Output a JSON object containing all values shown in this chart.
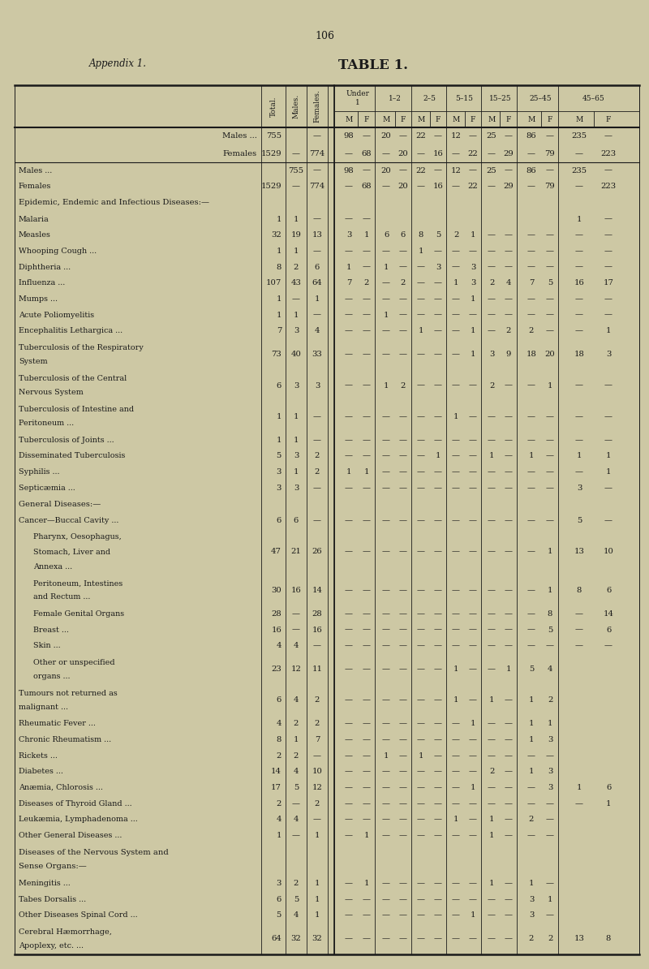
{
  "page_number": "106",
  "appendix_title": "Appendix 1.",
  "table_title": "TABLE 1.",
  "bg": "#cdc8a4",
  "tc": "#1a1a1a",
  "rows": [
    {
      "label": "Males ...",
      "is_totals": true,
      "side": "M",
      "total": "",
      "males": "755",
      "females": "—",
      "d": [
        "98",
        "—",
        "20",
        "—",
        "22",
        "—",
        "12",
        "—",
        "25",
        "—",
        "86",
        "—",
        "235",
        "—"
      ]
    },
    {
      "label": "Females",
      "is_totals": true,
      "side": "F",
      "total": "1529",
      "males": "—",
      "females": "774",
      "d": [
        "—",
        "68",
        "—",
        "20",
        "—",
        "16",
        "—",
        "22",
        "—",
        "29",
        "—",
        "79",
        "—",
        "223"
      ]
    },
    {
      "label": "Epidemic, Endemic and Infectious Diseases:—",
      "is_section": true
    },
    {
      "label": "Malaria",
      "ind": 1,
      "total": "1",
      "males": "1",
      "females": "—",
      "d": [
        "—",
        "—",
        "",
        "",
        "",
        "",
        "",
        "",
        "",
        "",
        "",
        "",
        "1",
        "—"
      ]
    },
    {
      "label": "Measles",
      "ind": 1,
      "total": "32",
      "males": "19",
      "females": "13",
      "d": [
        "3",
        "1",
        "6",
        "6",
        "8",
        "5",
        "2",
        "1",
        "—",
        "—",
        "—",
        "—",
        "—",
        "—"
      ]
    },
    {
      "label": "Whooping Cough ...",
      "ind": 1,
      "total": "1",
      "males": "1",
      "females": "—",
      "d": [
        "—",
        "—",
        "—",
        "—",
        "1",
        "—",
        "—",
        "—",
        "—",
        "—",
        "—",
        "—",
        "—",
        "—"
      ]
    },
    {
      "label": "Diphtheria ...",
      "ind": 1,
      "total": "8",
      "males": "2",
      "females": "6",
      "d": [
        "1",
        "—",
        "1",
        "—",
        "—",
        "3",
        "—",
        "3",
        "—",
        "—",
        "—",
        "—",
        "—",
        "—"
      ]
    },
    {
      "label": "Influenza ...",
      "ind": 1,
      "total": "107",
      "males": "43",
      "females": "64",
      "d": [
        "7",
        "2",
        "—",
        "2",
        "—",
        "—",
        "1",
        "3",
        "2",
        "4",
        "7",
        "5",
        "16",
        "17"
      ]
    },
    {
      "label": "Mumps ...",
      "ind": 1,
      "total": "1",
      "males": "—",
      "females": "1",
      "d": [
        "—",
        "—",
        "—",
        "—",
        "—",
        "—",
        "—",
        "1",
        "—",
        "—",
        "—",
        "—",
        "—",
        "—"
      ]
    },
    {
      "label": "Acute Poliomyelitis",
      "ind": 1,
      "total": "1",
      "males": "1",
      "females": "—",
      "d": [
        "—",
        "—",
        "1",
        "—",
        "—",
        "—",
        "—",
        "—",
        "—",
        "—",
        "—",
        "—",
        "—",
        "—"
      ]
    },
    {
      "label": "Encephalitis Lethargica ...",
      "ind": 1,
      "total": "7",
      "males": "3",
      "females": "4",
      "d": [
        "—",
        "—",
        "—",
        "—",
        "1",
        "—",
        "—",
        "1",
        "—",
        "2",
        "2",
        "—",
        "—",
        "1"
      ]
    },
    {
      "label": "Tuberculosis of the Respiratory",
      "ind": 1,
      "cont": "    System",
      "total": "73",
      "males": "40",
      "females": "33",
      "d": [
        "—",
        "—",
        "—",
        "—",
        "—",
        "—",
        "—",
        "1",
        "3",
        "9",
        "18",
        "20",
        "18",
        "3"
      ]
    },
    {
      "label": "Tuberculosis of the Central",
      "ind": 1,
      "cont": "    Nervous System",
      "total": "6",
      "males": "3",
      "females": "3",
      "d": [
        "—",
        "—",
        "1",
        "2",
        "—",
        "—",
        "—",
        "—",
        "2",
        "—",
        "—",
        "1",
        "—",
        "—"
      ]
    },
    {
      "label": "Tuberculosis of Intestine and",
      "ind": 1,
      "cont": "    Peritoneum ...",
      "total": "1",
      "males": "1",
      "females": "—",
      "d": [
        "—",
        "—",
        "—",
        "—",
        "—",
        "—",
        "1",
        "—",
        "—",
        "—",
        "—",
        "—",
        "—",
        "—"
      ]
    },
    {
      "label": "Tuberculosis of Joints ...",
      "ind": 1,
      "total": "1",
      "males": "1",
      "females": "—",
      "d": [
        "—",
        "—",
        "—",
        "—",
        "—",
        "—",
        "—",
        "—",
        "—",
        "—",
        "—",
        "—",
        "—",
        "—"
      ]
    },
    {
      "label": "Disseminated Tuberculosis",
      "ind": 1,
      "total": "5",
      "males": "3",
      "females": "2",
      "d": [
        "—",
        "—",
        "—",
        "—",
        "—",
        "1",
        "—",
        "—",
        "1",
        "—",
        "1",
        "—",
        "1",
        "1"
      ]
    },
    {
      "label": "Syphilis ...",
      "ind": 1,
      "total": "3",
      "males": "1",
      "females": "2",
      "d": [
        "1",
        "1",
        "—",
        "—",
        "—",
        "—",
        "—",
        "—",
        "—",
        "—",
        "—",
        "—",
        "—",
        "1"
      ]
    },
    {
      "label": "Septicæmia ...",
      "ind": 1,
      "total": "3",
      "males": "3",
      "females": "—",
      "d": [
        "—",
        "—",
        "—",
        "—",
        "—",
        "—",
        "—",
        "—",
        "—",
        "—",
        "—",
        "—",
        "3",
        "—"
      ]
    },
    {
      "label": "General Diseases:—",
      "is_section": true
    },
    {
      "label": "Cancer—Buccal Cavity ...",
      "ind": 1,
      "total": "6",
      "males": "6",
      "females": "—",
      "d": [
        "—",
        "—",
        "—",
        "—",
        "—",
        "—",
        "—",
        "—",
        "—",
        "—",
        "—",
        "—",
        "5",
        "—"
      ]
    },
    {
      "label": "    Pharynx, Oesophagus,",
      "ind": 2,
      "cont2": "    Stomach, Liver and",
      "cont3": "    Annexa ...",
      "total": "47",
      "males": "21",
      "females": "26",
      "d": [
        "—",
        "—",
        "—",
        "—",
        "—",
        "—",
        "—",
        "—",
        "—",
        "—",
        "—",
        "1",
        "13",
        "10"
      ]
    },
    {
      "label": "    Peritoneum, Intestines",
      "ind": 2,
      "cont": "    and Rectum ...",
      "total": "30",
      "males": "16",
      "females": "14",
      "d": [
        "—",
        "—",
        "—",
        "—",
        "—",
        "—",
        "—",
        "—",
        "—",
        "—",
        "—",
        "1",
        "8",
        "6"
      ]
    },
    {
      "label": "    Female Genital Organs",
      "ind": 2,
      "total": "28",
      "males": "—",
      "females": "28",
      "d": [
        "—",
        "—",
        "—",
        "—",
        "—",
        "—",
        "—",
        "—",
        "—",
        "—",
        "—",
        "8",
        "—",
        "14"
      ]
    },
    {
      "label": "    Breast ...",
      "ind": 2,
      "total": "16",
      "males": "—",
      "females": "16",
      "d": [
        "—",
        "—",
        "—",
        "—",
        "—",
        "—",
        "—",
        "—",
        "—",
        "—",
        "—",
        "5",
        "—",
        "6"
      ]
    },
    {
      "label": "    Skin ...",
      "ind": 2,
      "total": "4",
      "males": "4",
      "females": "—",
      "d": [
        "—",
        "—",
        "—",
        "—",
        "—",
        "—",
        "—",
        "—",
        "—",
        "—",
        "—",
        "—",
        "—",
        "—"
      ]
    },
    {
      "label": "    Other or unspecified",
      "ind": 2,
      "cont": "    organs ...",
      "total": "23",
      "males": "12",
      "females": "11",
      "d": [
        "—",
        "—",
        "—",
        "—",
        "—",
        "—",
        "1",
        "—",
        "—",
        "1",
        "5",
        "4",
        "",
        ""
      ]
    },
    {
      "label": "Tumours not returned as",
      "ind": 1,
      "cont": "    malignant ...",
      "total": "6",
      "males": "4",
      "females": "2",
      "d": [
        "—",
        "—",
        "—",
        "—",
        "—",
        "—",
        "1",
        "—",
        "1",
        "—",
        "1",
        "2",
        "",
        ""
      ]
    },
    {
      "label": "Rheumatic Fever ...",
      "ind": 1,
      "total": "4",
      "males": "2",
      "females": "2",
      "d": [
        "—",
        "—",
        "—",
        "—",
        "—",
        "—",
        "—",
        "1",
        "—",
        "—",
        "1",
        "1",
        "",
        ""
      ]
    },
    {
      "label": "Chronic Rheumatism ...",
      "ind": 1,
      "total": "8",
      "males": "1",
      "females": "7",
      "d": [
        "—",
        "—",
        "—",
        "—",
        "—",
        "—",
        "—",
        "—",
        "—",
        "—",
        "1",
        "3",
        "",
        ""
      ]
    },
    {
      "label": "Rickets ...",
      "ind": 1,
      "total": "2",
      "males": "2",
      "females": "—",
      "d": [
        "—",
        "—",
        "1",
        "—",
        "1",
        "—",
        "—",
        "—",
        "—",
        "—",
        "—",
        "—",
        "",
        ""
      ]
    },
    {
      "label": "Diabetes ...",
      "ind": 1,
      "total": "14",
      "males": "4",
      "females": "10",
      "d": [
        "—",
        "—",
        "—",
        "—",
        "—",
        "—",
        "—",
        "—",
        "2",
        "—",
        "1",
        "3",
        "",
        ""
      ]
    },
    {
      "label": "Anæmia, Chlorosis ...",
      "ind": 1,
      "total": "17",
      "males": "5",
      "females": "12",
      "d": [
        "—",
        "—",
        "—",
        "—",
        "—",
        "—",
        "—",
        "1",
        "—",
        "—",
        "—",
        "3",
        "1",
        "6"
      ]
    },
    {
      "label": "Diseases of Thyroid Gland ...",
      "ind": 1,
      "total": "2",
      "males": "—",
      "females": "2",
      "d": [
        "—",
        "—",
        "—",
        "—",
        "—",
        "—",
        "—",
        "—",
        "—",
        "—",
        "—",
        "—",
        "—",
        "1"
      ]
    },
    {
      "label": "Leukæmia, Lymphadenoma ...",
      "ind": 1,
      "total": "4",
      "males": "4",
      "females": "—",
      "d": [
        "—",
        "—",
        "—",
        "—",
        "—",
        "—",
        "1",
        "—",
        "1",
        "—",
        "2",
        "—",
        "",
        ""
      ]
    },
    {
      "label": "Other General Diseases ...",
      "ind": 1,
      "total": "1",
      "males": "—",
      "females": "1",
      "d": [
        "—",
        "1",
        "—",
        "—",
        "—",
        "—",
        "—",
        "—",
        "1",
        "—",
        "—",
        "—",
        "",
        ""
      ]
    },
    {
      "label": "Diseases of the Nervous System and",
      "is_section": true,
      "cont_s": "Sense Organs:—"
    },
    {
      "label": "Meningitis ...",
      "ind": 1,
      "total": "3",
      "males": "2",
      "females": "1",
      "d": [
        "—",
        "1",
        "—",
        "—",
        "—",
        "—",
        "—",
        "—",
        "1",
        "—",
        "1",
        "—",
        "",
        ""
      ]
    },
    {
      "label": "Tabes Dorsalis ...",
      "ind": 1,
      "total": "6",
      "males": "5",
      "females": "1",
      "d": [
        "—",
        "—",
        "—",
        "—",
        "—",
        "—",
        "—",
        "—",
        "—",
        "—",
        "3",
        "1",
        "",
        ""
      ]
    },
    {
      "label": "Other Diseases Spinal Cord ...",
      "ind": 1,
      "total": "5",
      "males": "4",
      "females": "1",
      "d": [
        "—",
        "—",
        "—",
        "—",
        "—",
        "—",
        "—",
        "1",
        "—",
        "—",
        "3",
        "—",
        "",
        ""
      ]
    },
    {
      "label": "Cerebral Hæmorrhage,",
      "ind": 1,
      "cont": "    Apoplexy, etc. ...",
      "total": "64",
      "males": "32",
      "females": "32",
      "d": [
        "—",
        "—",
        "—",
        "—",
        "—",
        "—",
        "—",
        "—",
        "—",
        "—",
        "2",
        "2",
        "13",
        "8"
      ]
    }
  ]
}
